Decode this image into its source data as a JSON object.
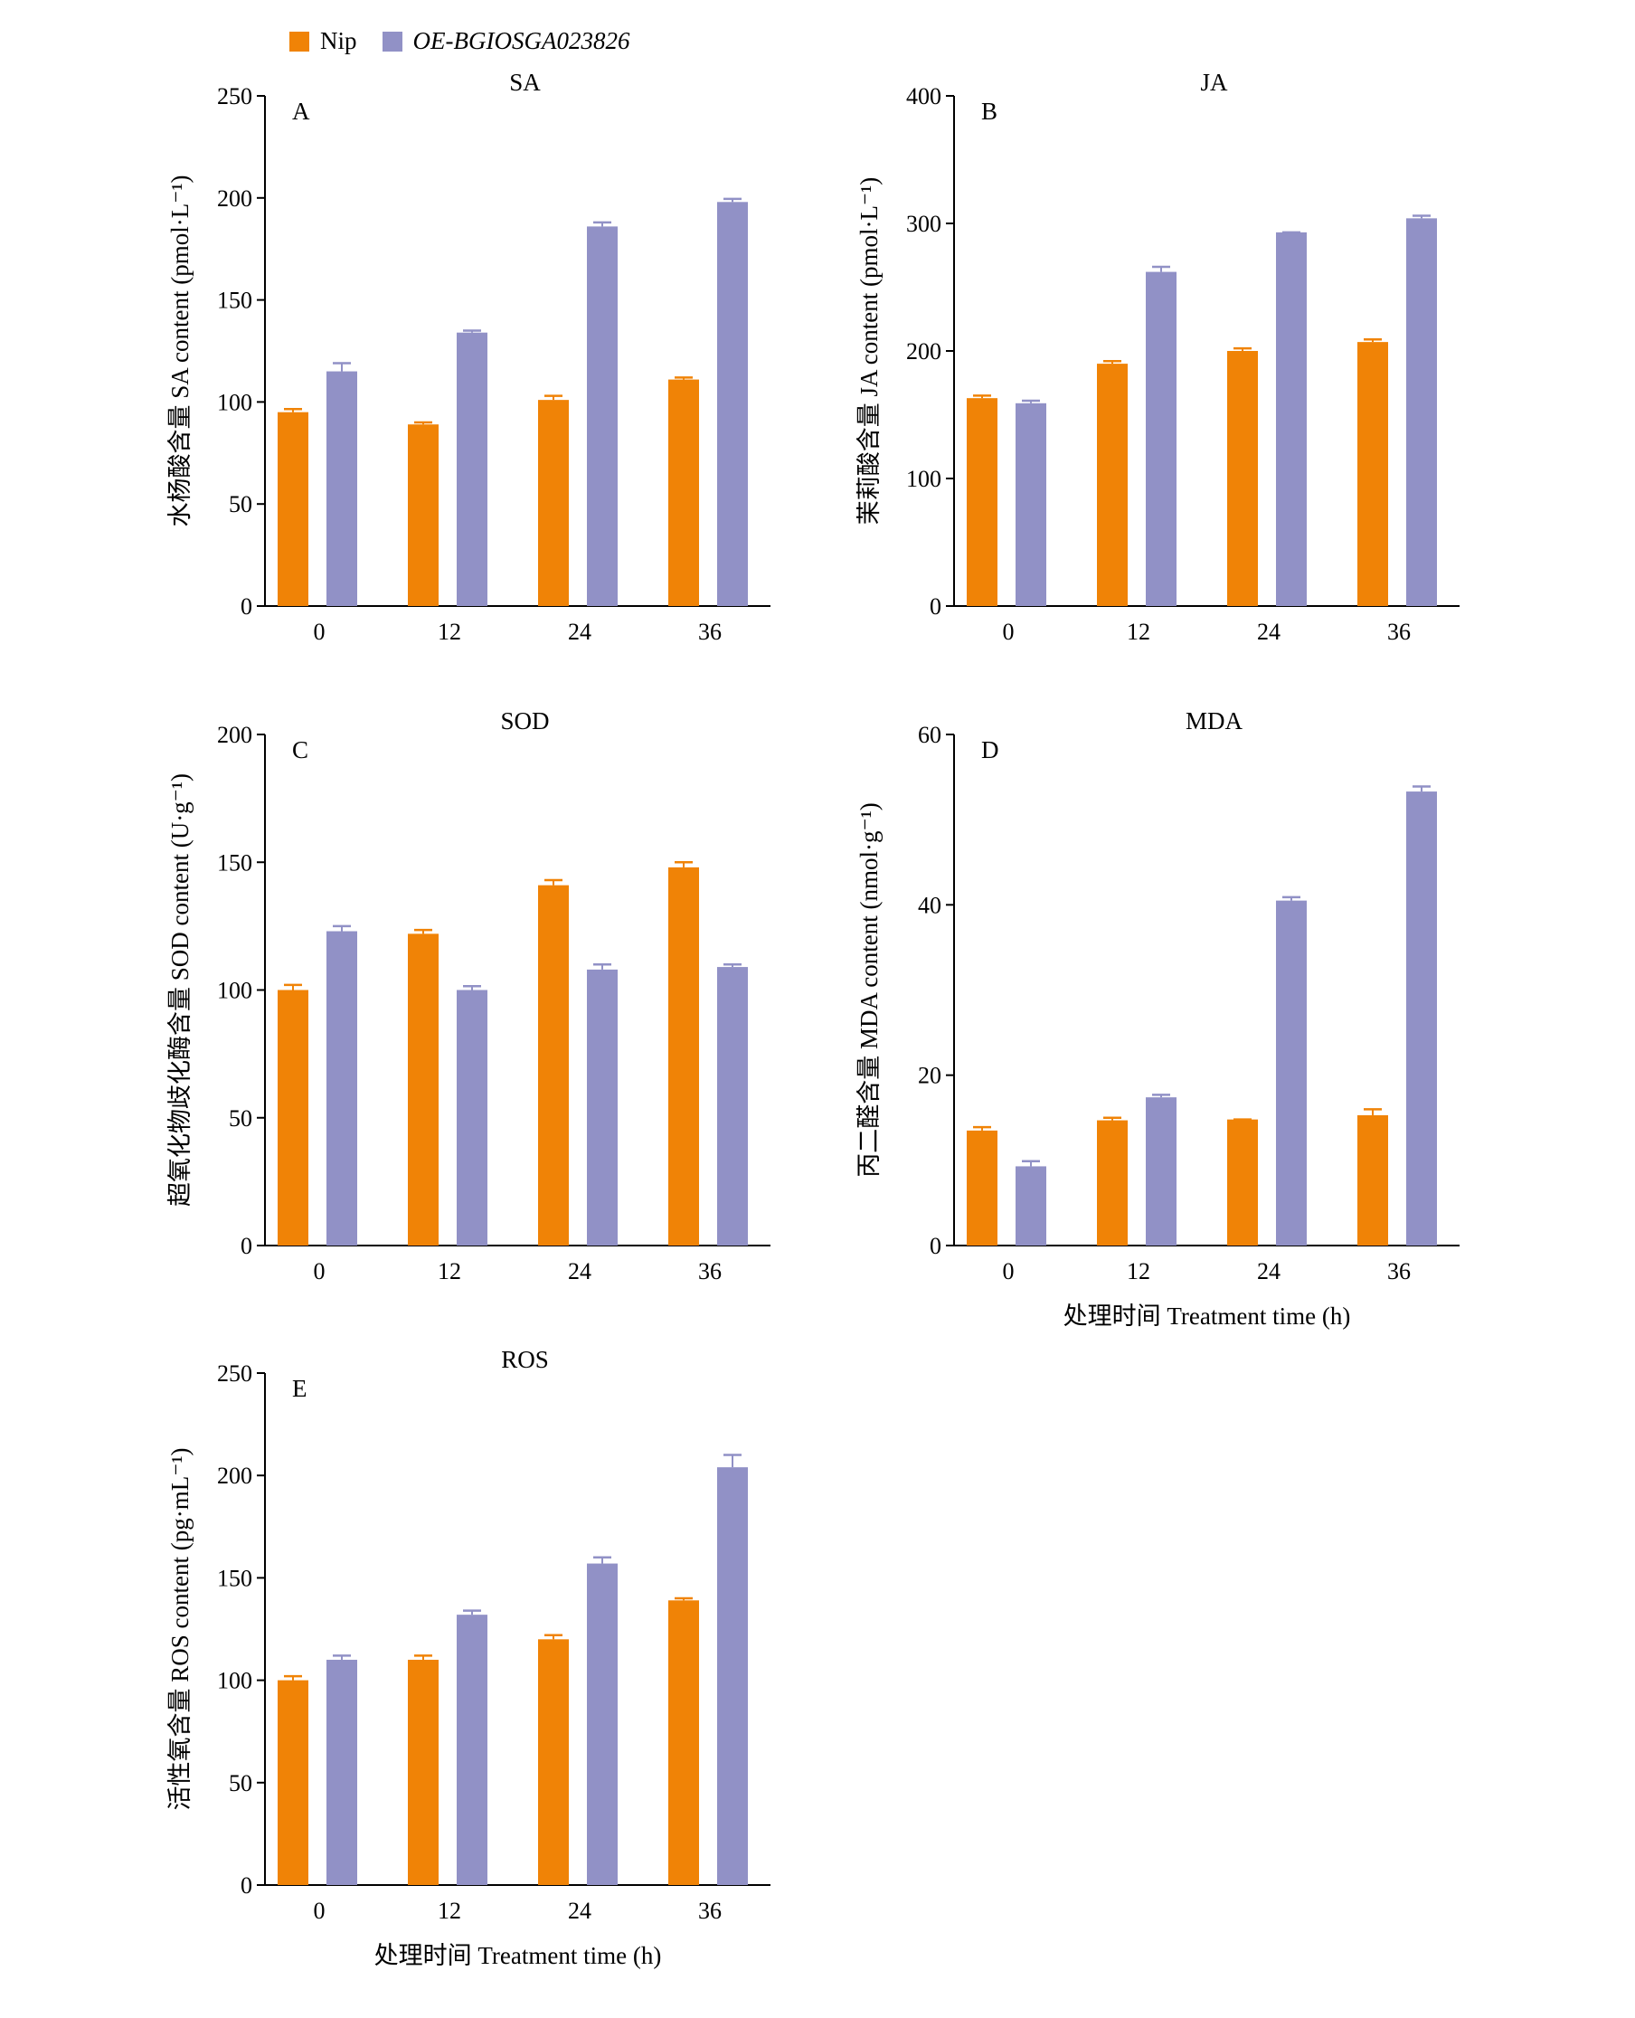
{
  "colors": {
    "nip": "#f08306",
    "oe": "#9191c6"
  },
  "legend": {
    "nip_label": "Nip",
    "oe_label": "OE-BGIOSGA023826"
  },
  "chart_data": [
    {
      "type": "bar",
      "panel": "A",
      "title": "SA",
      "ylabel": "水杨酸含量 SA content (pmol·L⁻¹)",
      "xlabel": "",
      "categories": [
        "0",
        "12",
        "24",
        "36"
      ],
      "ylim": [
        0,
        250
      ],
      "yticks": [
        0,
        50,
        100,
        150,
        200,
        250
      ],
      "series": [
        {
          "name": "Nip",
          "values": [
            95,
            89,
            101,
            111
          ],
          "errors": [
            1.5,
            1,
            2,
            1
          ]
        },
        {
          "name": "OE-BGIOSGA023826",
          "values": [
            115,
            134,
            186,
            198
          ],
          "errors": [
            4,
            1,
            2,
            1.5
          ]
        }
      ]
    },
    {
      "type": "bar",
      "panel": "B",
      "title": "JA",
      "ylabel": "茉莉酸含量 JA content (pmol·L⁻¹)",
      "xlabel": "",
      "categories": [
        "0",
        "12",
        "24",
        "36"
      ],
      "ylim": [
        0,
        400
      ],
      "yticks": [
        0,
        100,
        200,
        300,
        400
      ],
      "series": [
        {
          "name": "Nip",
          "values": [
            163,
            190,
            200,
            207
          ],
          "errors": [
            2,
            2,
            2,
            2
          ]
        },
        {
          "name": "OE-BGIOSGA023826",
          "values": [
            159,
            262,
            293,
            304
          ],
          "errors": [
            2,
            4,
            0,
            2
          ]
        }
      ]
    },
    {
      "type": "bar",
      "panel": "C",
      "title": "SOD",
      "ylabel": "超氧化物歧化酶含量 SOD content (U·g⁻¹)",
      "xlabel": "",
      "categories": [
        "0",
        "12",
        "24",
        "36"
      ],
      "ylim": [
        0,
        200
      ],
      "yticks": [
        0,
        50,
        100,
        150,
        200
      ],
      "series": [
        {
          "name": "Nip",
          "values": [
            100,
            122,
            141,
            148
          ],
          "errors": [
            2,
            1.5,
            2,
            2
          ]
        },
        {
          "name": "OE-BGIOSGA023826",
          "values": [
            123,
            100,
            108,
            109
          ],
          "errors": [
            2,
            1.5,
            2,
            1
          ]
        }
      ]
    },
    {
      "type": "bar",
      "panel": "D",
      "title": "MDA",
      "ylabel": "丙二醛含量 MDA content (nmol·g⁻¹)",
      "xlabel": "处理时间 Treatment time (h)",
      "categories": [
        "0",
        "12",
        "24",
        "36"
      ],
      "ylim": [
        0,
        60
      ],
      "yticks": [
        0,
        20,
        40,
        60
      ],
      "series": [
        {
          "name": "Nip",
          "values": [
            13.5,
            14.7,
            14.8,
            15.3
          ],
          "errors": [
            0.4,
            0.3,
            0,
            0.7
          ]
        },
        {
          "name": "OE-BGIOSGA023826",
          "values": [
            9.3,
            17.4,
            40.5,
            53.3
          ],
          "errors": [
            0.6,
            0.3,
            0.4,
            0.6
          ]
        }
      ]
    },
    {
      "type": "bar",
      "panel": "E",
      "title": "ROS",
      "ylabel": "活性氧含量 ROS content (pg·mL⁻¹)",
      "xlabel": "处理时间 Treatment time (h)",
      "categories": [
        "0",
        "12",
        "24",
        "36"
      ],
      "ylim": [
        0,
        250
      ],
      "yticks": [
        0,
        50,
        100,
        150,
        200,
        250
      ],
      "series": [
        {
          "name": "Nip",
          "values": [
            100,
            110,
            120,
            139
          ],
          "errors": [
            2,
            2,
            2,
            1
          ]
        },
        {
          "name": "OE-BGIOSGA023826",
          "values": [
            110,
            132,
            157,
            204
          ],
          "errors": [
            2,
            2,
            3,
            6
          ]
        }
      ]
    }
  ]
}
